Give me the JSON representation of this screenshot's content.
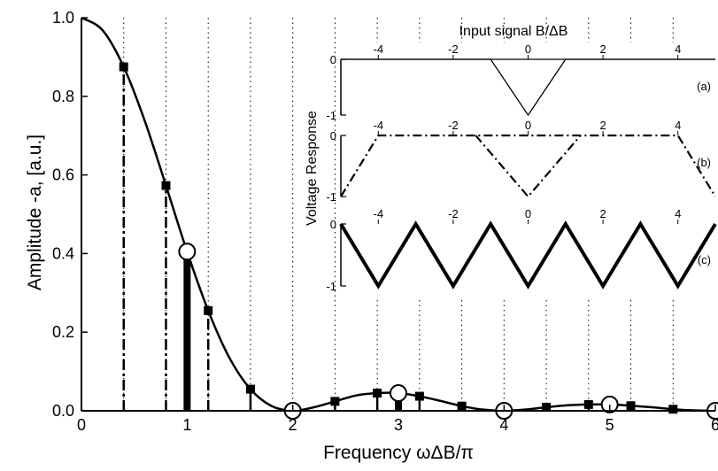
{
  "chart_data": [
    {
      "type": "line",
      "title": "",
      "xlabel": "Frequency  ωΔB/π",
      "ylabel": "Amplitude  -a, [a.u.]",
      "xlim": [
        0,
        6
      ],
      "ylim": [
        0,
        1.0
      ],
      "x_ticks": [
        0,
        1,
        2,
        3,
        4,
        5,
        6
      ],
      "y_ticks": [
        0.0,
        0.2,
        0.4,
        0.6,
        0.8,
        1.0
      ],
      "x_tick_labels": [
        "0",
        "1",
        "2",
        "3",
        "4",
        "5",
        "6"
      ],
      "y_tick_labels": [
        "0.0",
        "0.2",
        "0.4",
        "0.6",
        "0.8",
        "1.0"
      ],
      "grid": "dotted vertical lines",
      "vertical_dotted_lines_x": [
        0.4,
        0.8,
        1.2,
        1.6,
        2.0,
        2.4,
        2.8,
        3.2,
        3.6,
        4.0,
        4.4,
        4.8,
        5.2,
        5.6
      ],
      "colors": {
        "line": "#000000",
        "marker_open_fill": "#ffffff"
      },
      "series": [
        {
          "type": "curve",
          "x": [
            0,
            0.2,
            0.4,
            0.6,
            0.8,
            1.0,
            1.2,
            1.4,
            1.6,
            1.8,
            2.0,
            2.2,
            2.4,
            2.6,
            2.8,
            3.0,
            3.2,
            3.4,
            3.6,
            3.8,
            4.0,
            4.2,
            4.4,
            4.6,
            4.8,
            5.0,
            5.2,
            5.4,
            5.6,
            5.8,
            6.0
          ],
          "y": [
            1.0,
            0.968,
            0.875,
            0.737,
            0.573,
            0.405,
            0.255,
            0.135,
            0.055,
            0.012,
            0.0,
            0.009,
            0.024,
            0.039,
            0.045,
            0.045,
            0.037,
            0.025,
            0.012,
            0.003,
            0.0,
            0.003,
            0.009,
            0.014,
            0.016,
            0.016,
            0.013,
            0.009,
            0.004,
            0.001,
            0.0
          ]
        },
        {
          "type": "stems_filled_square",
          "style": "dash-dot",
          "x": [
            0.4,
            0.8,
            1.2,
            1.6,
            2.4,
            2.8,
            3.2,
            3.6,
            4.4,
            4.8,
            5.2,
            5.6
          ],
          "y": [
            0.875,
            0.573,
            0.255,
            0.055,
            0.024,
            0.045,
            0.037,
            0.012,
            0.009,
            0.016,
            0.013,
            0.004
          ]
        },
        {
          "type": "stems_open_circle",
          "style": "thick-solid",
          "x": [
            1,
            2,
            3,
            4,
            5,
            6
          ],
          "y": [
            0.405,
            0.0,
            0.045,
            0.0,
            0.016,
            0.0
          ]
        }
      ]
    },
    {
      "type": "line",
      "title": "Input signal  B/ΔB",
      "ylabel": "Voltage Response",
      "xlim": [
        -5,
        5
      ],
      "x_ticks": [
        -4,
        -2,
        0,
        2,
        4
      ],
      "x_tick_labels": [
        "-4",
        "-2",
        "0",
        "2",
        "4"
      ],
      "panels": [
        {
          "tag": "(a)",
          "style": "thin-solid",
          "ylim": [
            -1,
            0
          ],
          "y_tick_labels": [
            "0",
            "-1"
          ],
          "x": [
            -5,
            -1,
            0,
            1,
            5
          ],
          "y": [
            0,
            0,
            -1,
            0,
            0
          ]
        },
        {
          "tag": "(b)",
          "style": "dash-dot",
          "ylim": [
            -1,
            0
          ],
          "y_tick_labels": [
            "0",
            "-1"
          ],
          "x": [
            -5,
            -4,
            4,
            5
          ],
          "y": [
            -1,
            0,
            0,
            -1
          ],
          "extra_segments": [
            {
              "x": [
                -1.4,
                0,
                1.4
              ],
              "y": [
                0,
                -1,
                0
              ]
            }
          ]
        },
        {
          "tag": "(c)",
          "style": "thick-solid",
          "ylim": [
            -1,
            0
          ],
          "y_tick_labels": [
            "0",
            "-1"
          ],
          "x": [
            -5,
            -4,
            -3,
            -2,
            -1,
            0,
            1,
            2,
            3,
            4,
            5
          ],
          "y": [
            0,
            -1,
            0,
            -1,
            0,
            -1,
            0,
            -1,
            0,
            -1,
            0
          ]
        }
      ]
    }
  ]
}
